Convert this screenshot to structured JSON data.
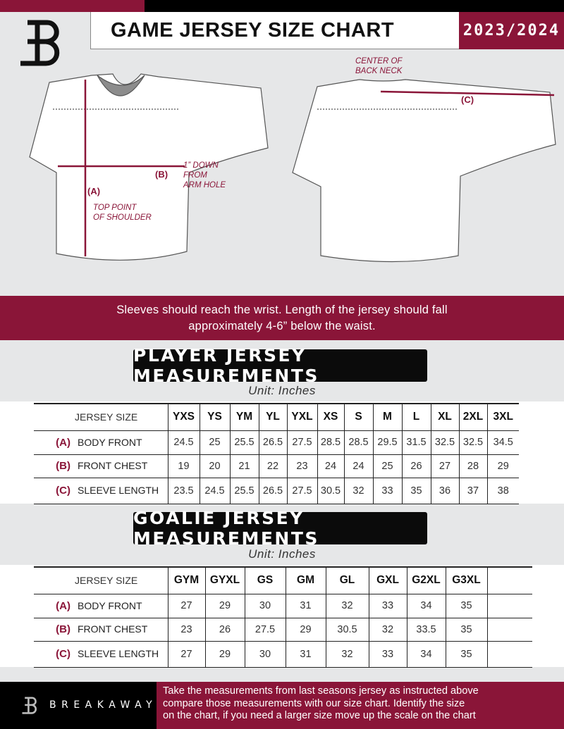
{
  "header": {
    "title": "GAME JERSEY SIZE CHART",
    "season": "2023/2024",
    "logo": "B"
  },
  "diagram": {
    "front": {
      "label_a": "(A)",
      "label_a_desc": [
        "TOP POINT",
        "OF SHOULDER"
      ],
      "label_b": "(B)",
      "label_b_desc": [
        "1” DOWN",
        "FROM",
        "ARM HOLE"
      ]
    },
    "back": {
      "label_c": "(C)",
      "label_c_desc": [
        "CENTER OF",
        "BACK NECK"
      ]
    }
  },
  "instructions": [
    "Sleeves should reach the wrist. Length of the jersey should fall",
    "approximately 4-6” below the waist."
  ],
  "player": {
    "title": "PLAYER JERSEY MEASUREMENTS",
    "unit": "Unit: Inches",
    "size_header": "JERSEY SIZE",
    "sizes": [
      "YXS",
      "YS",
      "YM",
      "YL",
      "YXL",
      "XS",
      "S",
      "M",
      "L",
      "XL",
      "2XL",
      "3XL"
    ],
    "rows": [
      {
        "marker": "(A)",
        "label": "BODY FRONT",
        "values": [
          "24.5",
          "25",
          "25.5",
          "26.5",
          "27.5",
          "28.5",
          "28.5",
          "29.5",
          "31.5",
          "32.5",
          "32.5",
          "34.5"
        ]
      },
      {
        "marker": "(B)",
        "label": "FRONT CHEST",
        "values": [
          "19",
          "20",
          "21",
          "22",
          "23",
          "24",
          "24",
          "25",
          "26",
          "27",
          "28",
          "29"
        ]
      },
      {
        "marker": "(C)",
        "label": "SLEEVE LENGTH",
        "values": [
          "23.5",
          "24.5",
          "25.5",
          "26.5",
          "27.5",
          "30.5",
          "32",
          "33",
          "35",
          "36",
          "37",
          "38"
        ]
      }
    ]
  },
  "goalie": {
    "title": "GOALIE JERSEY MEASUREMENTS",
    "unit": "Unit: Inches",
    "size_header": "JERSEY SIZE",
    "sizes": [
      "GYM",
      "GYXL",
      "GS",
      "GM",
      "GL",
      "GXL",
      "G2XL",
      "G3XL",
      ""
    ],
    "rows": [
      {
        "marker": "(A)",
        "label": "BODY FRONT",
        "values": [
          "27",
          "29",
          "30",
          "31",
          "32",
          "33",
          "34",
          "35",
          ""
        ]
      },
      {
        "marker": "(B)",
        "label": "FRONT CHEST",
        "values": [
          "23",
          "26",
          "27.5",
          "29",
          "30.5",
          "32",
          "33.5",
          "35",
          ""
        ]
      },
      {
        "marker": "(C)",
        "label": "SLEEVE LENGTH",
        "values": [
          "27",
          "29",
          "30",
          "31",
          "32",
          "33",
          "34",
          "35",
          ""
        ]
      }
    ]
  },
  "footer": {
    "brand": "BREAKAWAY",
    "text": [
      "Take the measurements from last seasons jersey as instructed above",
      "compare those measurements  with our size chart. Identify the size",
      "on the chart, if you need a larger size move up the scale on the chart"
    ]
  },
  "colors": {
    "accent": "#8a1538",
    "dark": "#000000",
    "background": "#e6e7e8"
  }
}
